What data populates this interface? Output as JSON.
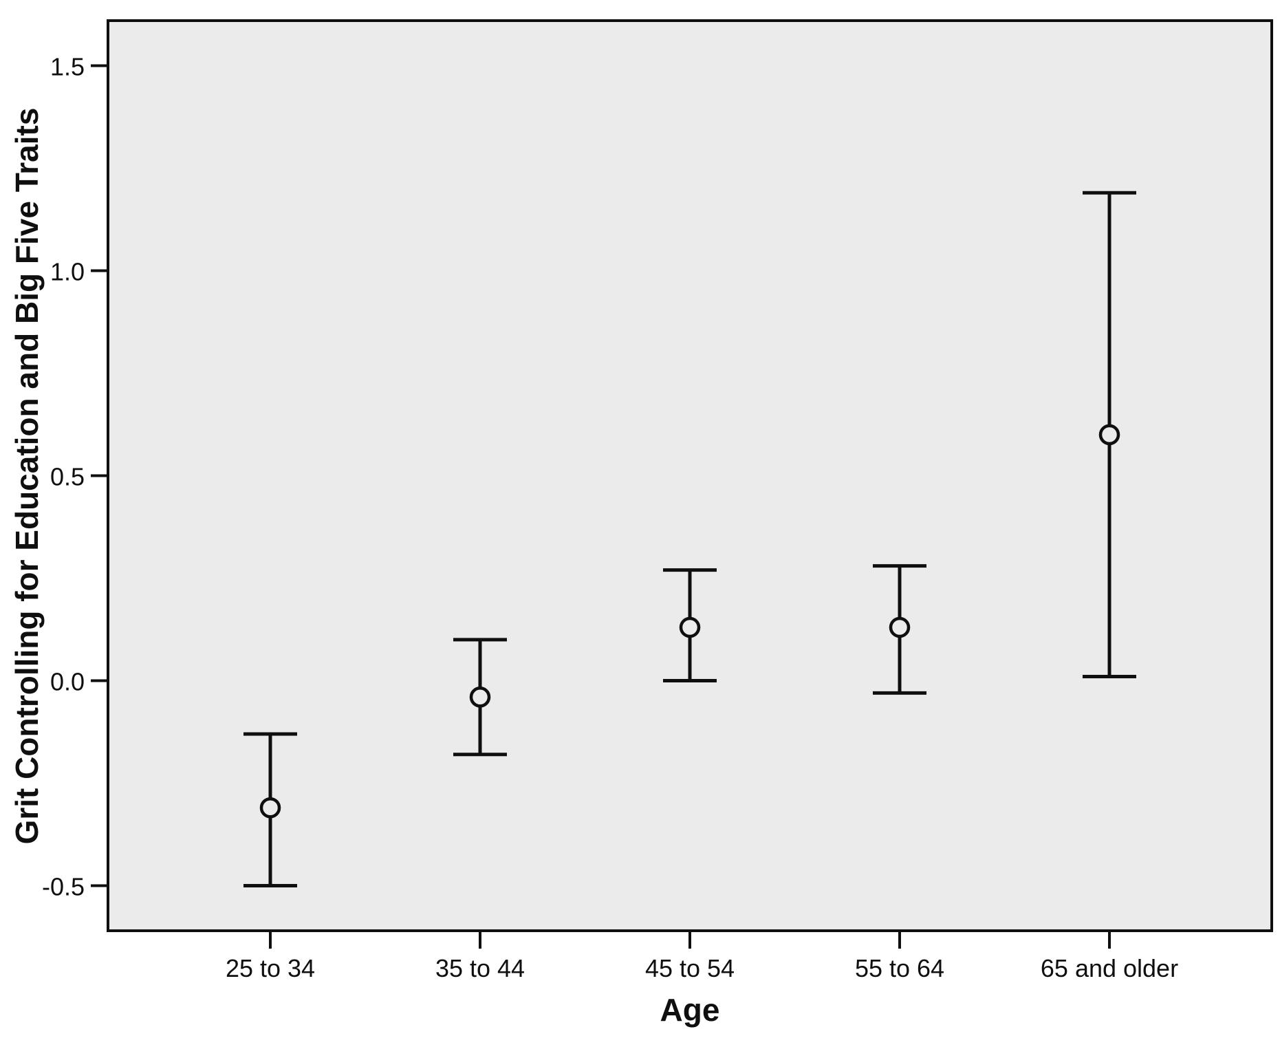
{
  "figure": {
    "background": "#ffffff",
    "plot_background": "#ebebeb",
    "ink_color": "#0f0f0f"
  },
  "chart_data": {
    "type": "errorbar",
    "xlabel": "Age",
    "ylabel": "Grit Controlling for Education and Big Five Traits",
    "categories": [
      "25 to 34",
      "35 to 44",
      "45 to 54",
      "55 to 64",
      "65 and older"
    ],
    "means": [
      -0.31,
      -0.04,
      0.13,
      0.13,
      0.6
    ],
    "ci_low": [
      -0.5,
      -0.18,
      0.0,
      -0.03,
      0.01
    ],
    "ci_high": [
      -0.13,
      0.1,
      0.27,
      0.28,
      1.19
    ],
    "ytick_values": [
      1.5,
      1.0,
      0.5,
      0.0,
      -0.5
    ],
    "ytick_labels": [
      "1.5",
      "1.0",
      "0.5",
      "0.0",
      "-0.5"
    ],
    "ylim": [
      -0.61,
      1.61
    ],
    "grid": false,
    "legend": "none",
    "marker": "open-circle"
  }
}
